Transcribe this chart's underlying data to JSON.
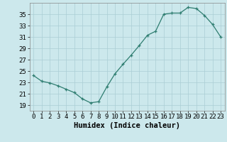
{
  "x": [
    0,
    1,
    2,
    3,
    4,
    5,
    6,
    7,
    8,
    9,
    10,
    11,
    12,
    13,
    14,
    15,
    16,
    17,
    18,
    19,
    20,
    21,
    22,
    23
  ],
  "y": [
    24.2,
    23.2,
    22.9,
    22.4,
    21.8,
    21.2,
    20.1,
    19.4,
    19.6,
    22.2,
    24.5,
    26.2,
    27.8,
    29.5,
    31.3,
    32.0,
    35.0,
    35.2,
    35.2,
    36.2,
    36.0,
    34.8,
    33.2,
    31.0
  ],
  "xlabel": "Humidex (Indice chaleur)",
  "bg_color": "#cce8ec",
  "line_color": "#2e7d70",
  "marker": "+",
  "ylim": [
    18,
    37
  ],
  "yticks": [
    19,
    21,
    23,
    25,
    27,
    29,
    31,
    33,
    35
  ],
  "xticks": [
    0,
    1,
    2,
    3,
    4,
    5,
    6,
    7,
    8,
    9,
    10,
    11,
    12,
    13,
    14,
    15,
    16,
    17,
    18,
    19,
    20,
    21,
    22,
    23
  ],
  "grid_color": "#aacdd4",
  "xlabel_fontsize": 7.5,
  "tick_fontsize": 6.5
}
